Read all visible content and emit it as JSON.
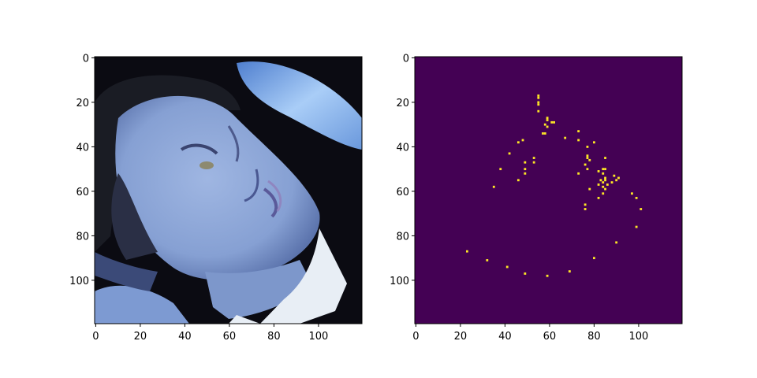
{
  "chart_data": [
    {
      "type": "image",
      "description_free": true,
      "image_size": [
        120,
        120
      ],
      "xticks": [
        0,
        20,
        40,
        60,
        80,
        100
      ],
      "yticks": [
        0,
        20,
        40,
        60,
        80,
        100
      ],
      "xlim": [
        -0.5,
        119.5
      ],
      "ylim": [
        119.5,
        -0.5
      ],
      "colors": {
        "background_dark": "#0b0b12",
        "skin": "#8aa6d6",
        "skin_shadow": "#5f78b0",
        "hair": "#1a1c24",
        "shirt": "#e8eef5",
        "arm": "#6f9fe0"
      }
    },
    {
      "type": "heatmap",
      "image_size": [
        120,
        120
      ],
      "colormap": "viridis",
      "background_color": "#440154",
      "point_color": "#fde725",
      "xticks": [
        0,
        20,
        40,
        60,
        80,
        100
      ],
      "yticks": [
        0,
        20,
        40,
        60,
        80,
        100
      ],
      "xlim": [
        -0.5,
        119.5
      ],
      "ylim": [
        119.5,
        -0.5
      ],
      "points": [
        [
          55,
          17
        ],
        [
          55,
          18
        ],
        [
          55,
          20
        ],
        [
          55,
          21
        ],
        [
          55,
          24
        ],
        [
          59,
          27
        ],
        [
          59,
          28
        ],
        [
          58,
          30
        ],
        [
          59,
          31
        ],
        [
          61,
          29
        ],
        [
          62,
          29
        ],
        [
          57,
          34
        ],
        [
          58,
          34
        ],
        [
          67,
          36
        ],
        [
          73,
          33
        ],
        [
          73,
          37
        ],
        [
          77,
          40
        ],
        [
          80,
          38
        ],
        [
          46,
          38
        ],
        [
          42,
          43
        ],
        [
          48,
          37
        ],
        [
          77,
          44
        ],
        [
          77,
          45
        ],
        [
          78,
          46
        ],
        [
          85,
          45
        ],
        [
          38,
          50
        ],
        [
          49,
          47
        ],
        [
          49,
          50
        ],
        [
          49,
          52
        ],
        [
          53,
          45
        ],
        [
          53,
          47
        ],
        [
          76,
          48
        ],
        [
          77,
          50
        ],
        [
          73,
          52
        ],
        [
          82,
          51
        ],
        [
          84,
          50
        ],
        [
          85,
          50
        ],
        [
          84,
          52
        ],
        [
          85,
          54
        ],
        [
          83,
          55
        ],
        [
          85,
          55
        ],
        [
          84,
          56
        ],
        [
          82,
          57
        ],
        [
          84,
          58
        ],
        [
          85,
          59
        ],
        [
          89,
          53
        ],
        [
          91,
          54
        ],
        [
          90,
          55
        ],
        [
          88,
          56
        ],
        [
          86,
          57
        ],
        [
          46,
          55
        ],
        [
          35,
          58
        ],
        [
          78,
          59
        ],
        [
          84,
          61
        ],
        [
          82,
          63
        ],
        [
          97,
          61
        ],
        [
          99,
          63
        ],
        [
          101,
          68
        ],
        [
          76,
          66
        ],
        [
          76,
          68
        ],
        [
          99,
          76
        ],
        [
          90,
          83
        ],
        [
          23,
          87
        ],
        [
          32,
          91
        ],
        [
          80,
          90
        ],
        [
          41,
          94
        ],
        [
          69,
          96
        ],
        [
          49,
          97
        ],
        [
          59,
          98
        ]
      ]
    }
  ]
}
